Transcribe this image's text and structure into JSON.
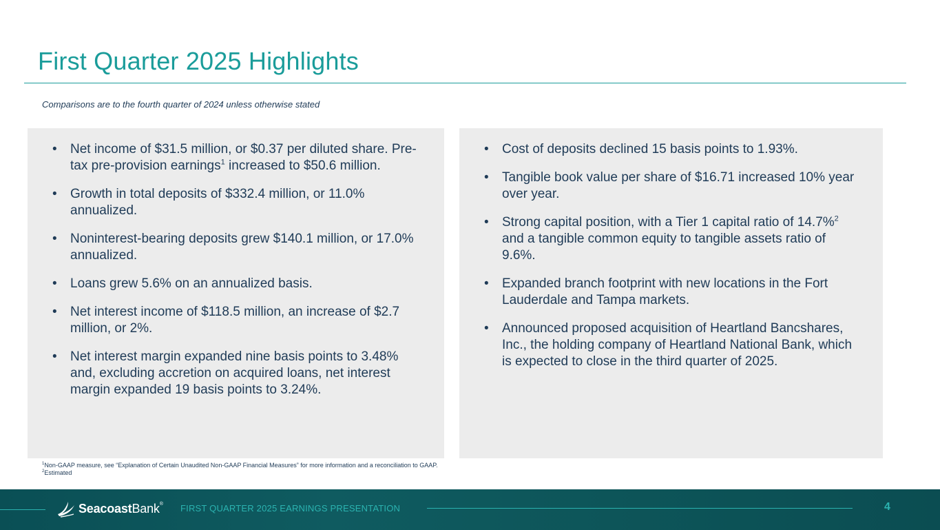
{
  "header": {
    "title": "First Quarter 2025 Highlights",
    "subtitle": "Comparisons are to the fourth quarter of 2024 unless otherwise stated"
  },
  "left_panel": {
    "bullets": [
      {
        "text": "Net income of $31.5 million, or $0.37 per diluted share. Pre-tax pre-provision earnings",
        "sup": "1",
        "after": " increased to $50.6 million."
      },
      {
        "text": "Growth in total deposits of $332.4 million, or 11.0% annualized."
      },
      {
        "text": "Noninterest-bearing deposits grew $140.1 million, or 17.0% annualized."
      },
      {
        "text": "Loans grew 5.6% on an annualized basis."
      },
      {
        "text": "Net interest income of $118.5 million, an increase of $2.7 million, or 2%."
      },
      {
        "text": "Net interest margin expanded nine basis points to 3.48% and, excluding accretion on acquired loans, net interest margin expanded 19 basis points to 3.24%."
      }
    ]
  },
  "right_panel": {
    "bullets": [
      {
        "text": "Cost of deposits declined 15 basis points to 1.93%."
      },
      {
        "text": "Tangible book value per share of $16.71 increased 10% year over year."
      },
      {
        "text": "Strong capital position, with a Tier 1 capital ratio of 14.7%",
        "sup": "2",
        "after": " and a tangible common equity to tangible assets ratio of 9.6%."
      },
      {
        "text": "Expanded branch footprint with new locations in the Fort Lauderdale and Tampa markets."
      },
      {
        "text": "Announced proposed acquisition of Heartland Bancshares, Inc., the holding company of Heartland National Bank, which is expected to close in the third quarter of 2025."
      }
    ]
  },
  "bullet_glyph": "•",
  "footnotes": [
    {
      "marker": "1",
      "text": "Non-GAAP measure, see “Explanation of Certain Unaudited Non-GAAP Financial Measures” for more information and a reconciliation to GAAP."
    },
    {
      "marker": "2",
      "text": "Estimated"
    }
  ],
  "footer": {
    "logo_part1": "Seacoast",
    "logo_part2": "Bank",
    "logo_mark": "®",
    "presentation_label": "FIRST QUARTER 2025 EARNINGS PRESENTATION",
    "page_number": "4",
    "logo_icon": "seagull-icon"
  },
  "colors": {
    "accent": "#1a9c9a",
    "text": "#1f3b57",
    "panel": "#ececec",
    "footer": "#0d5559"
  }
}
